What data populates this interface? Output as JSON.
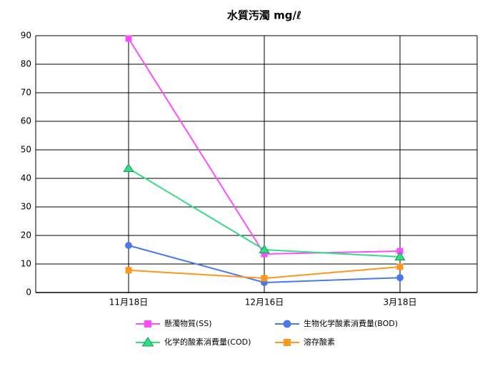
{
  "chart_data": {
    "type": "line",
    "title": "水質汚濁 mg/ℓ",
    "categories": [
      "11月18日",
      "12月16日",
      "3月18日"
    ],
    "series": [
      {
        "name": "懸濁物質(SS)",
        "color": "#ff4cff",
        "marker": "square",
        "values": [
          89,
          13.5,
          14.5
        ]
      },
      {
        "name": "生物化学酸素消費量(BOD)",
        "color": "#4a78e8",
        "marker": "circle",
        "values": [
          16.5,
          3.5,
          5.2
        ]
      },
      {
        "name": "化学的酸素消費量(COD)",
        "color": "#33dd88",
        "marker": "triangle",
        "values": [
          43.5,
          15,
          12.5
        ]
      },
      {
        "name": "溶存酸素",
        "color": "#ff961e",
        "marker": "square",
        "values": [
          7.8,
          5,
          9
        ]
      }
    ],
    "ylim": [
      0,
      90
    ],
    "yticks": [
      0,
      10,
      20,
      30,
      40,
      50,
      60,
      70,
      80,
      90
    ],
    "grid": true
  }
}
